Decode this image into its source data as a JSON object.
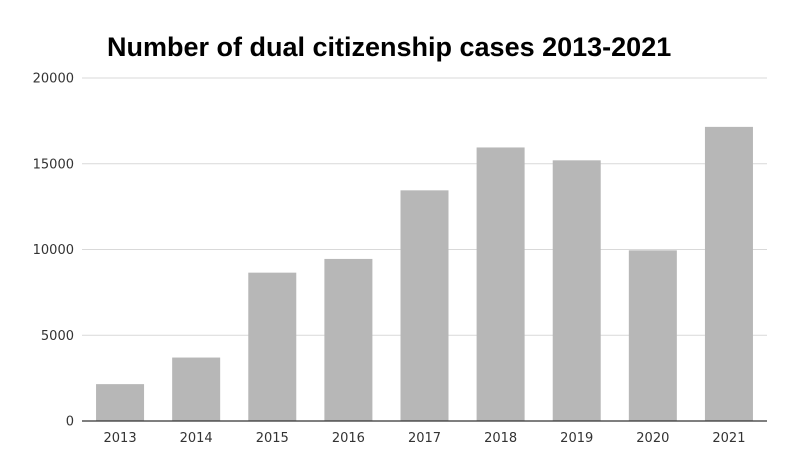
{
  "chart_data": {
    "type": "bar",
    "title": "Number of dual citizenship cases 2013-2021",
    "xlabel": "",
    "ylabel": "",
    "categories": [
      "2013",
      "2014",
      "2015",
      "2016",
      "2017",
      "2018",
      "2019",
      "2020",
      "2021"
    ],
    "values": [
      2150,
      3700,
      8650,
      9450,
      13450,
      15950,
      15200,
      9950,
      17150
    ],
    "ylim": [
      0,
      20000
    ],
    "yticks": [
      0,
      5000,
      10000,
      15000,
      20000
    ],
    "grid": true,
    "legend": "none",
    "colors": {
      "bar": "#b7b7b7",
      "grid": "#d9d9d9",
      "axis": "#333333"
    }
  }
}
